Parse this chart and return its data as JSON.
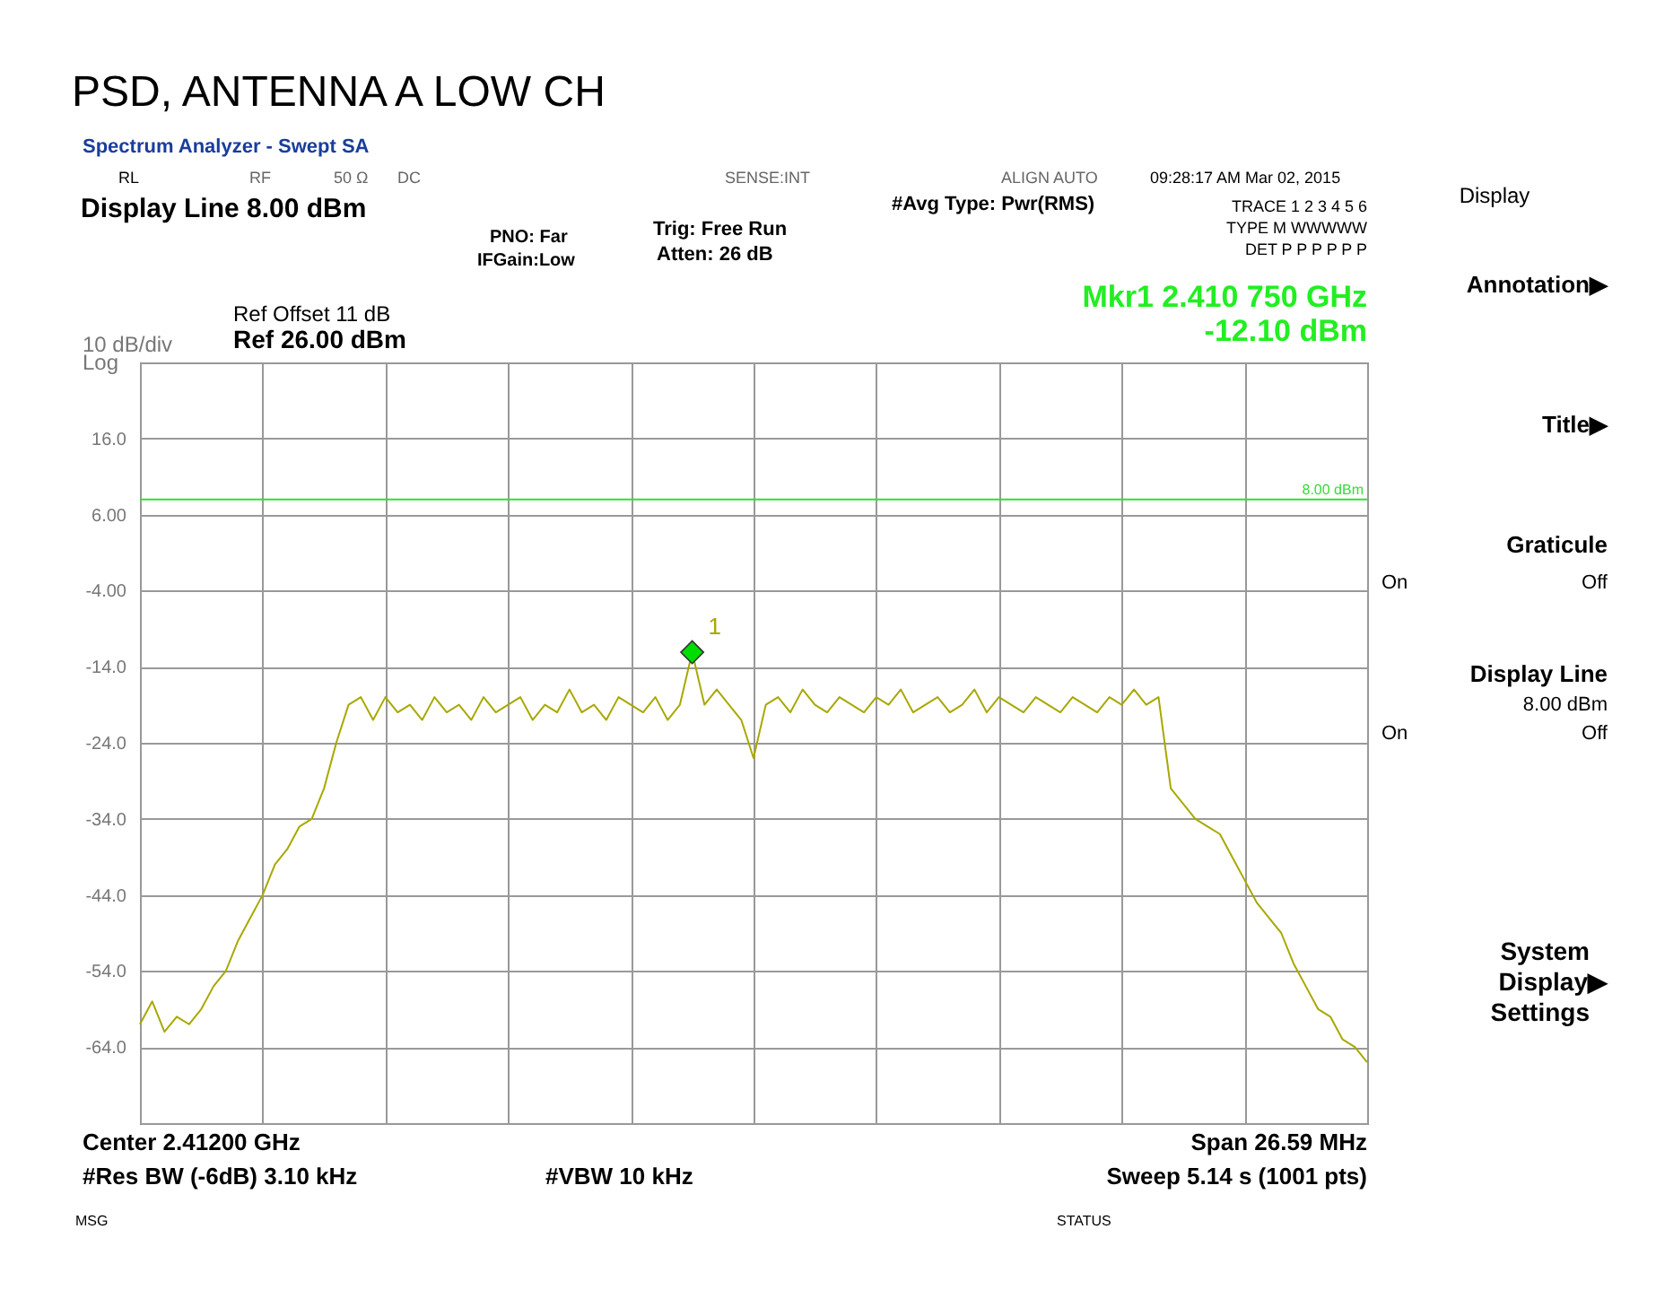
{
  "chart_data": {
    "type": "line",
    "title": "PSD, ANTENNA A LOW CH",
    "categories": [
      null,
      null,
      null,
      null,
      null,
      null,
      null,
      null,
      null,
      null,
      null,
      null,
      null,
      null,
      null,
      null,
      null,
      null,
      null,
      null,
      null,
      null,
      null,
      null,
      null,
      null,
      null,
      null,
      null,
      null,
      null,
      null,
      null,
      null,
      null,
      null,
      null,
      null,
      null,
      null,
      null,
      null,
      null,
      null,
      null,
      null,
      null,
      null,
      null,
      null,
      null,
      null,
      null,
      null,
      null,
      null,
      null,
      null,
      null,
      null,
      null,
      null,
      null,
      null,
      null,
      null,
      null,
      null,
      null,
      null,
      null,
      null,
      null,
      null,
      null,
      null,
      null,
      null,
      null,
      null,
      null,
      null,
      null,
      null,
      null,
      null,
      null,
      null,
      null,
      null,
      null,
      null,
      null,
      null,
      null,
      null,
      null,
      null,
      null,
      null,
      null
    ],
    "series": [
      {
        "color": "#a8a800",
        "values": [
          -61,
          -58,
          -62,
          -60,
          -61,
          -59,
          -56,
          -54,
          -50,
          -47,
          -44,
          -40,
          -38,
          -35,
          -34,
          -30,
          -24,
          -19,
          -18,
          -21,
          -18,
          -20,
          -19,
          -21,
          -18,
          -20,
          -19,
          -21,
          -18,
          -20,
          -19,
          -18,
          -21,
          -19,
          -20,
          -17,
          -20,
          -19,
          -21,
          -18,
          -19,
          -20,
          -18,
          -21,
          -19,
          -12.1,
          -19,
          -17,
          -19,
          -21,
          -26,
          -19,
          -18,
          -20,
          -17,
          -19,
          -20,
          -18,
          -19,
          -20,
          -18,
          -19,
          -17,
          -20,
          -19,
          -18,
          -20,
          -19,
          -17,
          -20,
          -18,
          -19,
          -20,
          -18,
          -19,
          -20,
          -18,
          -19,
          -20,
          -18,
          -19,
          -17,
          -19,
          -18,
          -30,
          -32,
          -34,
          -35,
          -36,
          -39,
          -42,
          -45,
          -47,
          -49,
          -53,
          -56,
          -59,
          -60,
          -63,
          -64,
          -66
        ]
      },
      {
        "type": "scatter",
        "name": "1",
        "color": "#00dd00",
        "marker": "diamond",
        "values": [
          null,
          null,
          null,
          null,
          null,
          null,
          null,
          null,
          null,
          null,
          null,
          null,
          null,
          null,
          null,
          null,
          null,
          null,
          null,
          null,
          null,
          null,
          null,
          null,
          null,
          null,
          null,
          null,
          null,
          null,
          null,
          null,
          null,
          null,
          null,
          null,
          null,
          null,
          null,
          null,
          null,
          null,
          null,
          null,
          null,
          -12.1,
          null,
          null,
          null,
          null,
          null,
          null,
          null,
          null,
          null,
          null,
          null,
          null,
          null,
          null,
          null,
          null,
          null,
          null,
          null,
          null,
          null,
          null,
          null,
          null,
          null,
          null,
          null,
          null,
          null,
          null,
          null,
          null,
          null,
          null,
          null,
          null,
          null,
          null,
          null,
          null,
          null,
          null,
          null,
          null,
          null,
          null,
          null,
          null,
          null,
          null,
          null,
          null,
          null,
          null,
          null
        ]
      }
    ],
    "ylim": [
      -74,
      26
    ],
    "yticks": [
      {
        "value": 26,
        "label": null
      },
      {
        "value": 16,
        "label": "16.0"
      },
      {
        "value": 6,
        "label": "6.00"
      },
      {
        "value": -4,
        "label": "-4.00"
      },
      {
        "value": -14,
        "label": "-14.0"
      },
      {
        "value": -24,
        "label": "-24.0"
      },
      {
        "value": -34,
        "label": "-34.0"
      },
      {
        "value": -44,
        "label": "-44.0"
      },
      {
        "value": -54,
        "label": "-54.0"
      },
      {
        "value": -64,
        "label": "-64.0"
      },
      {
        "value": -74,
        "label": null
      }
    ],
    "grid": true,
    "ref_lines": [
      {
        "axis": "y",
        "value": 8,
        "label": "8.00 dBm",
        "color": "#33dd33"
      }
    ],
    "annotations": [
      "Spectrum Analyzer - Swept SA",
      "RL",
      "RF",
      "50 Ω",
      "DC",
      "SENSE:INT",
      "ALIGN AUTO",
      "09:28:17 AM Mar 02, 2015",
      "Display Line  8.00 dBm",
      "PNO: Far",
      "IFGain:Low",
      "Trig: Free Run",
      "Atten: 26 dB",
      "#Avg Type: Pwr(RMS)",
      "TRACE 1 2 3 4 5 6",
      "TYPE M WWWWW",
      "DET P P P P P P",
      "Ref Offset 11 dB",
      "Ref 26.00 dBm",
      "10 dB/div",
      "Log",
      "Mkr1 2.410 750 GHz",
      "-12.10 dBm",
      "Center 2.41200 GHz",
      "#Res BW (-6dB) 3.10 kHz",
      "#VBW 10 kHz",
      "Span 26.59 MHz",
      "Sweep  5.14 s (1001 pts)",
      "MSG",
      "STATUS",
      "Display",
      "Annotation▶",
      "Title▶",
      "Graticule",
      "On",
      "Off",
      "Display Line",
      "8.00 dBm",
      "On",
      "Off",
      "System",
      "Display▶",
      "Settings"
    ]
  }
}
